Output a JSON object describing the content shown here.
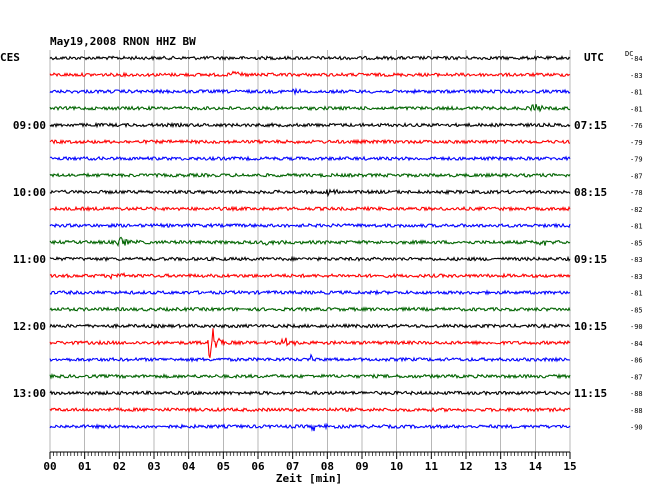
{
  "chart_data": {
    "type": "line",
    "title": "May19,2008  RNON HHZ BW",
    "left_zone": "CES",
    "right_zone": "UTC",
    "dc_label": "DC",
    "xlabel": "Zeit [min]",
    "xlim": [
      0,
      15
    ],
    "x_ticks": [
      "00",
      "01",
      "02",
      "03",
      "04",
      "05",
      "06",
      "07",
      "08",
      "09",
      "10",
      "11",
      "12",
      "13",
      "14",
      "15"
    ],
    "left_time_labels": [
      {
        "text": "09:00",
        "row": 4
      },
      {
        "text": "10:00",
        "row": 8
      },
      {
        "text": "11:00",
        "row": 12
      },
      {
        "text": "12:00",
        "row": 16
      },
      {
        "text": "13:00",
        "row": 20
      }
    ],
    "right_time_labels": [
      {
        "text": "07:15",
        "row": 4
      },
      {
        "text": "08:15",
        "row": 8
      },
      {
        "text": "09:15",
        "row": 12
      },
      {
        "text": "10:15",
        "row": 16
      },
      {
        "text": "11:15",
        "row": 20
      }
    ],
    "dc_offsets": [
      "-84",
      "-83",
      "-81",
      "-81",
      "-76",
      "-79",
      "-79",
      "-87",
      "-78",
      "-82",
      "-81",
      "-85",
      "-83",
      "-83",
      "-81",
      "-85",
      "-90",
      "-84",
      "-86",
      "-87",
      "-88",
      "-88",
      "-90"
    ],
    "trace_colors": [
      "#000000",
      "#ff0000",
      "#0000ff",
      "#006400"
    ],
    "events": [
      {
        "row": 1,
        "minute": 5.3,
        "amplitude": 6
      },
      {
        "row": 2,
        "minute": 6.9,
        "amplitude": 4
      },
      {
        "row": 3,
        "minute": 13.9,
        "amplitude": 5
      },
      {
        "row": 8,
        "minute": 8.0,
        "amplitude": 4
      },
      {
        "row": 11,
        "minute": 2.0,
        "amplitude": 5
      },
      {
        "row": 11,
        "minute": 6.2,
        "amplitude": 3
      },
      {
        "row": 11,
        "minute": 14.1,
        "amplitude": 4
      },
      {
        "row": 13,
        "minute": 1.8,
        "amplitude": 4
      },
      {
        "row": 17,
        "minute": 4.6,
        "amplitude": 30
      },
      {
        "row": 17,
        "minute": 6.7,
        "amplitude": 6
      },
      {
        "row": 18,
        "minute": 7.5,
        "amplitude": 5
      },
      {
        "row": 22,
        "minute": 7.6,
        "amplitude": 5
      }
    ],
    "grid": true
  }
}
